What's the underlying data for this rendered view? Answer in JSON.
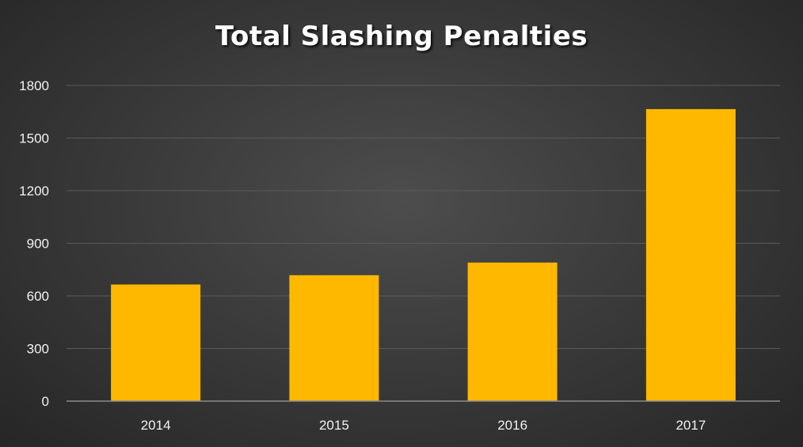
{
  "chart_data": {
    "type": "bar",
    "title": "Total Slashing Penalties",
    "categories": [
      "2014",
      "2015",
      "2016",
      "2017"
    ],
    "values": [
      665,
      718,
      790,
      1665
    ],
    "ylim": [
      0,
      1800
    ],
    "yticks": [
      0,
      300,
      600,
      900,
      1200,
      1500,
      1800
    ],
    "grid": true,
    "legend": "none",
    "colors": {
      "bar": "#ffb800",
      "grid": "#5a5a5a",
      "axis": "#8c8c8c",
      "text": "#f2f2f2"
    }
  }
}
